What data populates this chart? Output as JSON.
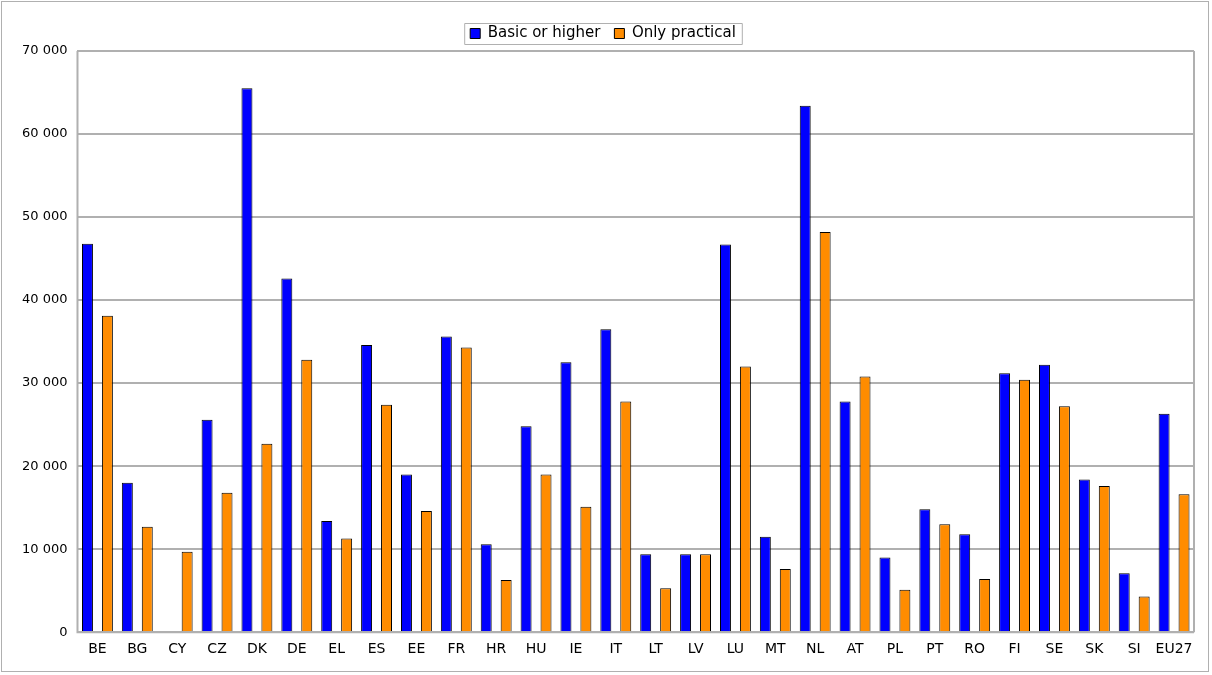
{
  "chart_data": {
    "type": "bar",
    "categories": [
      "BE",
      "BG",
      "CY",
      "CZ",
      "DK",
      "DE",
      "EL",
      "ES",
      "EE",
      "FR",
      "HR",
      "HU",
      "IE",
      "IT",
      "LT",
      "LV",
      "LU",
      "MT",
      "NL",
      "AT",
      "PL",
      "PT",
      "RO",
      "FI",
      "SE",
      "SK",
      "SI",
      "EU27"
    ],
    "series": [
      {
        "name": "Basic or higher",
        "color": "#0000ff",
        "values": [
          46800,
          18000,
          null,
          25600,
          65500,
          42600,
          13400,
          34600,
          19000,
          35600,
          10600,
          24800,
          32500,
          36500,
          9400,
          9400,
          46700,
          11500,
          63400,
          27800,
          9000,
          14800,
          11800,
          31200,
          32200,
          18400,
          7100,
          26300
        ]
      },
      {
        "name": "Only practical",
        "color": "#ff8c00",
        "values": [
          38100,
          12700,
          9700,
          16800,
          22700,
          32800,
          11300,
          27400,
          14600,
          34300,
          6300,
          19000,
          15100,
          27800,
          5300,
          9400,
          32000,
          7600,
          48200,
          30800,
          5100,
          13000,
          6400,
          30400,
          27200,
          17600,
          4300,
          16600
        ]
      }
    ],
    "ylim": [
      0,
      70000
    ],
    "yticks": [
      {
        "value": 0,
        "label": "0"
      },
      {
        "value": 10000,
        "label": "10 000"
      },
      {
        "value": 20000,
        "label": "20 000"
      },
      {
        "value": 30000,
        "label": "30 000"
      },
      {
        "value": 40000,
        "label": "40 000"
      },
      {
        "value": 50000,
        "label": "50 000"
      },
      {
        "value": 60000,
        "label": "60 000"
      },
      {
        "value": 70000,
        "label": "70 000"
      }
    ],
    "grid": "y",
    "legend": "top"
  }
}
